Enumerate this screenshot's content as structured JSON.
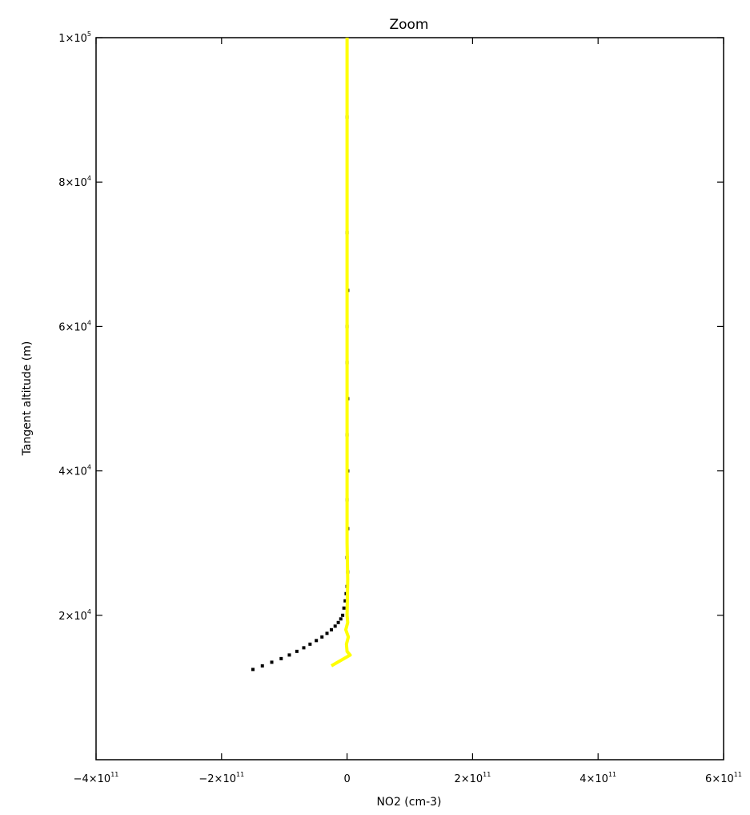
{
  "chart_data": {
    "type": "scatter",
    "title": "Zoom",
    "xlabel": "NO2 (cm-3)",
    "ylabel": "Tangent altitude (m)",
    "xlim": [
      -400000000000.0,
      600000000000.0
    ],
    "ylim": [
      0,
      100000
    ],
    "grid": false,
    "legend": "none",
    "x_ticks": [
      {
        "value": -400000000000.0,
        "mantissa": "−4×10",
        "exp": "11"
      },
      {
        "value": -200000000000.0,
        "mantissa": "−2×10",
        "exp": "11"
      },
      {
        "value": 0,
        "mantissa": "0",
        "exp": ""
      },
      {
        "value": 200000000000.0,
        "mantissa": "2×10",
        "exp": "11"
      },
      {
        "value": 400000000000.0,
        "mantissa": "4×10",
        "exp": "11"
      },
      {
        "value": 600000000000.0,
        "mantissa": "6×10",
        "exp": "11"
      }
    ],
    "y_ticks": [
      {
        "value": 20000,
        "mantissa": "2×10",
        "exp": "4"
      },
      {
        "value": 40000,
        "mantissa": "4×10",
        "exp": "4"
      },
      {
        "value": 60000,
        "mantissa": "6×10",
        "exp": "4"
      },
      {
        "value": 80000,
        "mantissa": "8×10",
        "exp": "4"
      },
      {
        "value": 100000,
        "mantissa": "1×10",
        "exp": "5"
      }
    ],
    "series": [
      {
        "color": "#000000",
        "marker": "square",
        "x": [
          -150000000000.0,
          -135000000000.0,
          -120000000000.0,
          -105000000000.0,
          -92000000000.0,
          -80000000000.0,
          -69000000000.0,
          -59000000000.0,
          -49000000000.0,
          -40000000000.0,
          -32000000000.0,
          -25000000000.0,
          -19000000000.0,
          -14000000000.0,
          -10000000000.0,
          -7000000000.0,
          -5000000000.0,
          -3000000000.0,
          -1500000000.0,
          0,
          1000000000.0,
          0,
          1000000000.0,
          0,
          1000000000.0,
          0,
          1000000000.0,
          0,
          0,
          1000000000.0,
          0,
          0
        ],
        "y": [
          12500,
          13000,
          13500,
          14000,
          14500,
          15000,
          15500,
          16000,
          16500,
          17000,
          17500,
          18000,
          18500,
          19000,
          19500,
          20000,
          21000,
          22000,
          23000,
          24000,
          26000,
          28000,
          32000,
          36000,
          40000,
          45000,
          50000,
          55000,
          60000,
          65000,
          73000,
          89000
        ]
      },
      {
        "color": "#ffff00",
        "marker": "line",
        "x": [
          -25000000000.0,
          -15000000000.0,
          -5000000000.0,
          5000000000.0,
          0,
          -1000000000.0,
          2000000000.0,
          -2000000000.0,
          1000000000.0,
          0,
          1000000000.0,
          0,
          0,
          0,
          0,
          0
        ],
        "y": [
          13000,
          13500,
          14000,
          14500,
          15000,
          16000,
          17000,
          18000,
          19000,
          20000,
          25000,
          30000,
          40000,
          60000,
          80000,
          100000
        ]
      }
    ]
  }
}
